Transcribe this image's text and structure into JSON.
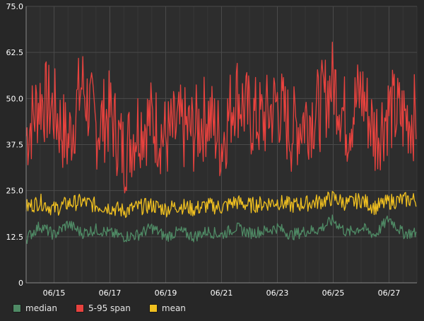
{
  "chart_data": {
    "type": "line",
    "title": "",
    "xlabel": "",
    "ylabel": "",
    "x_range": [
      "06/14",
      "06/27"
    ],
    "x_ticks": [
      "06/15",
      "06/17",
      "06/19",
      "06/21",
      "06/23",
      "06/25",
      "06/27"
    ],
    "y_ticks": [
      "0",
      "12.5",
      "25.0",
      "37.5",
      "50.0",
      "62.5",
      "75.0"
    ],
    "ylim": [
      0,
      75
    ],
    "grid": true,
    "legend": "bottom-left",
    "colors": {
      "background": "#272727",
      "grid": "#444444",
      "axis_text": "#ffffff"
    },
    "series": [
      {
        "name": "5-95 span",
        "color": "#e8423e",
        "x": [
          "06/14",
          "06/14.5",
          "06/15",
          "06/15.5",
          "06/16",
          "06/16.5",
          "06/17",
          "06/17.5",
          "06/18",
          "06/18.5",
          "06/19",
          "06/19.5",
          "06/20",
          "06/20.5",
          "06/21",
          "06/21.5",
          "06/22",
          "06/22.5",
          "06/23",
          "06/23.5",
          "06/24",
          "06/24.5",
          "06/25",
          "06/25.5",
          "06/26",
          "06/26.5",
          "06/27",
          "06/27.5"
        ],
        "values": [
          40,
          50,
          47,
          38,
          54,
          42,
          46,
          35,
          43,
          44,
          39,
          42,
          41,
          46,
          38,
          52,
          45,
          44,
          49,
          41,
          45,
          47,
          55,
          43,
          52,
          40,
          47,
          45
        ]
      },
      {
        "name": "mean",
        "color": "#f0c020",
        "x": [
          "06/14",
          "06/14.5",
          "06/15",
          "06/15.5",
          "06/16",
          "06/16.5",
          "06/17",
          "06/17.5",
          "06/18",
          "06/18.5",
          "06/19",
          "06/19.5",
          "06/20",
          "06/20.5",
          "06/21",
          "06/21.5",
          "06/22",
          "06/22.5",
          "06/23",
          "06/23.5",
          "06/24",
          "06/24.5",
          "06/25",
          "06/25.5",
          "06/26",
          "06/26.5",
          "06/27",
          "06/27.5"
        ],
        "values": [
          20.5,
          22,
          20,
          21.5,
          22,
          21,
          20.5,
          19.5,
          20.5,
          21,
          20,
          21,
          20,
          21,
          20.5,
          22,
          21,
          21.5,
          22,
          21,
          21.5,
          22,
          23,
          21.5,
          22.5,
          20.5,
          22,
          22.5
        ]
      },
      {
        "name": "median",
        "color": "#4f8a65",
        "x": [
          "06/14",
          "06/14.5",
          "06/15",
          "06/15.5",
          "06/16",
          "06/16.5",
          "06/17",
          "06/17.5",
          "06/18",
          "06/18.5",
          "06/19",
          "06/19.5",
          "06/20",
          "06/20.5",
          "06/21",
          "06/21.5",
          "06/22",
          "06/22.5",
          "06/23",
          "06/23.5",
          "06/24",
          "06/24.5",
          "06/25",
          "06/25.5",
          "06/26",
          "06/26.5",
          "06/27",
          "06/27.5"
        ],
        "values": [
          12,
          15.5,
          13,
          16,
          13.5,
          14.5,
          13.5,
          12.5,
          13,
          15,
          12.5,
          14,
          12.5,
          14,
          13,
          15,
          13.5,
          14,
          15,
          13,
          14,
          14.5,
          17,
          13.5,
          15,
          13,
          17.5,
          13.5
        ]
      }
    ]
  }
}
